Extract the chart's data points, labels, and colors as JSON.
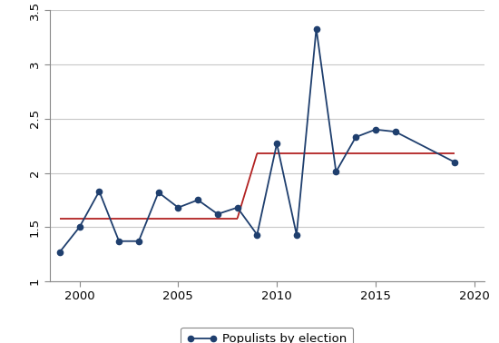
{
  "x": [
    1999,
    2000,
    2001,
    2002,
    2003,
    2004,
    2005,
    2006,
    2007,
    2008,
    2009,
    2010,
    2011,
    2012,
    2013,
    2014,
    2015,
    2016,
    2019
  ],
  "y": [
    1.27,
    1.5,
    1.83,
    1.37,
    1.37,
    1.82,
    1.68,
    1.75,
    1.62,
    1.68,
    1.43,
    2.27,
    1.43,
    3.33,
    2.01,
    2.33,
    2.4,
    2.38,
    2.1
  ],
  "step_segments": [
    {
      "x": [
        1999,
        2008
      ],
      "y": [
        1.58,
        1.58
      ]
    },
    {
      "x": [
        2008,
        2009
      ],
      "y": [
        1.58,
        2.18
      ]
    },
    {
      "x": [
        2009,
        2019
      ],
      "y": [
        2.18,
        2.18
      ]
    }
  ],
  "line_color": "#1f3f6e",
  "step_color": "#b22222",
  "marker": "o",
  "markersize": 4.5,
  "linewidth": 1.3,
  "step_linewidth": 1.3,
  "ylim": [
    1.0,
    3.5
  ],
  "xlim": [
    1998.5,
    2020.5
  ],
  "yticks": [
    1.0,
    1.5,
    2.0,
    2.5,
    3.0,
    3.5
  ],
  "xticks": [
    2000,
    2005,
    2010,
    2015,
    2020
  ],
  "legend_label": "Populists by election",
  "background_color": "#ffffff",
  "grid_color": "#c8c8c8",
  "spine_color": "#888888",
  "tick_labelsize": 9.5
}
